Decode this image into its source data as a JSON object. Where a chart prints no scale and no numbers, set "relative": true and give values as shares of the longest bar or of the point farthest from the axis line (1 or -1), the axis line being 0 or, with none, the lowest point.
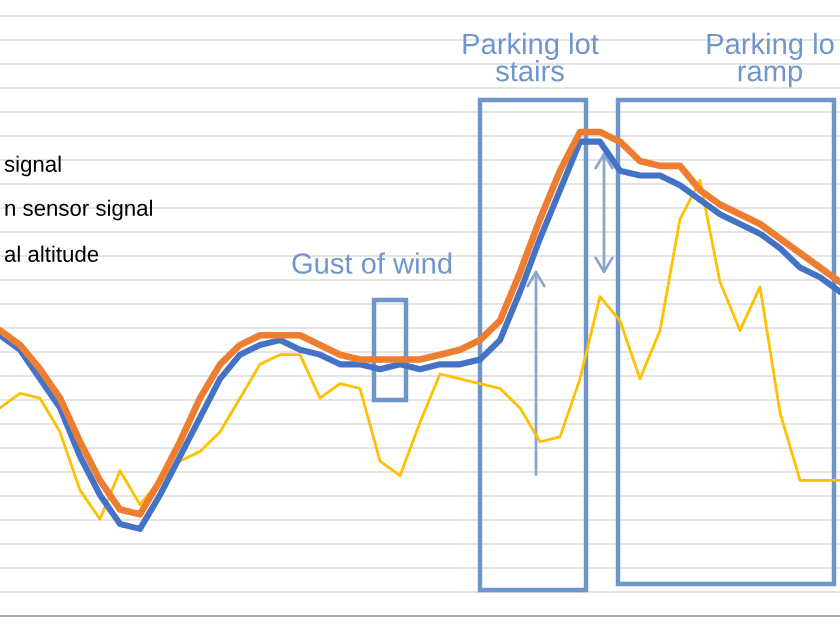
{
  "chart_data": {
    "type": "line",
    "relative": true,
    "grid": "y",
    "legend": false,
    "marker": "none",
    "line_style": "solid",
    "categories": [
      null,
      null,
      null,
      null,
      null,
      null,
      null,
      null,
      null,
      null,
      null,
      null,
      null,
      null,
      null,
      null,
      null,
      null,
      null,
      null,
      null,
      null,
      null,
      null,
      null,
      null,
      null,
      null,
      null,
      null,
      null,
      null,
      null,
      null,
      null,
      null,
      null,
      null,
      null,
      null,
      null,
      null,
      null
    ],
    "series": [
      {
        "color": "#ffc000",
        "values": [
          0.43,
          0.46,
          0.45,
          0.38,
          0.26,
          0.2,
          0.3,
          0.23,
          0.28,
          0.32,
          0.34,
          0.38,
          0.45,
          0.52,
          0.54,
          0.54,
          0.45,
          0.48,
          0.47,
          0.32,
          0.29,
          0.4,
          0.5,
          0.49,
          0.48,
          0.47,
          0.43,
          0.36,
          0.37,
          0.49,
          0.66,
          0.61,
          0.49,
          0.59,
          0.82,
          0.9,
          0.69,
          0.59,
          0.68,
          0.42,
          0.28,
          0.28,
          0.28
        ]
      },
      {
        "color": "#4472c4",
        "values": [
          0.58,
          0.55,
          0.49,
          0.43,
          0.33,
          0.25,
          0.19,
          0.18,
          0.25,
          0.33,
          0.41,
          0.49,
          0.54,
          0.56,
          0.57,
          0.55,
          0.54,
          0.52,
          0.52,
          0.51,
          0.52,
          0.51,
          0.52,
          0.52,
          0.53,
          0.57,
          0.67,
          0.78,
          0.88,
          0.98,
          0.98,
          0.92,
          0.91,
          0.91,
          0.89,
          0.86,
          0.83,
          0.81,
          0.79,
          0.76,
          0.72,
          0.7,
          0.67
        ]
      },
      {
        "color": "#ed7d31",
        "values": [
          0.59,
          0.56,
          0.51,
          0.45,
          0.36,
          0.28,
          0.22,
          0.21,
          0.28,
          0.36,
          0.45,
          0.52,
          0.56,
          0.58,
          0.58,
          0.58,
          0.56,
          0.54,
          0.53,
          0.53,
          0.53,
          0.53,
          0.54,
          0.55,
          0.57,
          0.61,
          0.71,
          0.82,
          0.92,
          1.0,
          1.0,
          0.98,
          0.94,
          0.93,
          0.93,
          0.88,
          0.85,
          0.83,
          0.81,
          0.78,
          0.75,
          0.72,
          0.69
        ]
      }
    ],
    "annotations": [
      "signal",
      "n sensor signal",
      "al altitude",
      "Gust of wind",
      "Parking lot\nstairs",
      "Parking lo\nramp"
    ]
  }
}
